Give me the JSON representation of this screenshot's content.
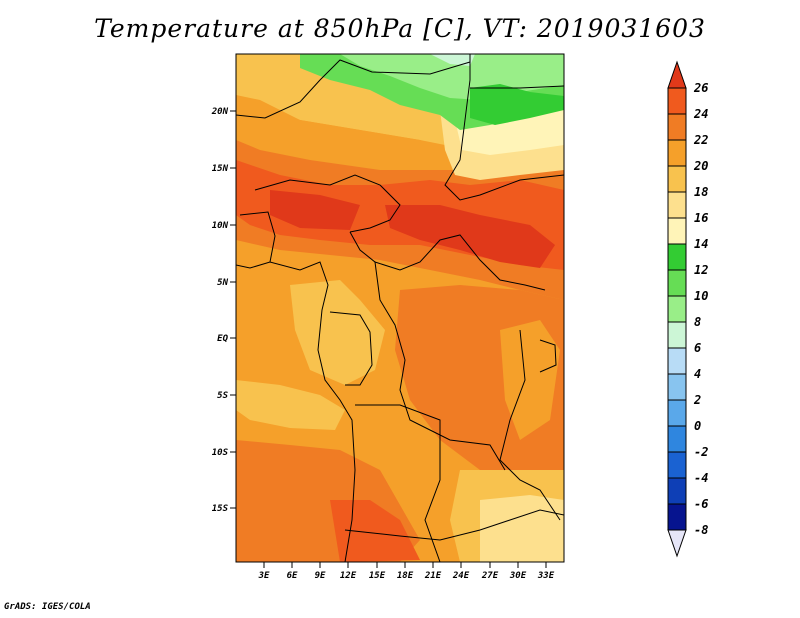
{
  "title": "Temperature at 850hPa [C], VT: 2019031603",
  "credit": "GrADS: IGES/COLA",
  "map": {
    "lat_labels": [
      "20N",
      "15N",
      "10N",
      "5N",
      "EQ",
      "5S",
      "10S",
      "15S"
    ],
    "lon_labels": [
      "3E",
      "6E",
      "9E",
      "12E",
      "15E",
      "18E",
      "21E",
      "24E",
      "27E",
      "30E",
      "33E"
    ]
  },
  "colorbar": {
    "levels": [
      "26",
      "24",
      "22",
      "20",
      "18",
      "16",
      "14",
      "12",
      "10",
      "8",
      "6",
      "4",
      "2",
      "0",
      "-2",
      "-4",
      "-6",
      "-8"
    ],
    "colors": [
      "#e0391a",
      "#f05a1e",
      "#f07c24",
      "#f5a02a",
      "#f8c24e",
      "#fde08e",
      "#fff4b8",
      "#33cc33",
      "#66dd55",
      "#99ee88",
      "#ccf6d6",
      "#b8dcf6",
      "#88c4ef",
      "#5aa8ea",
      "#2f86df",
      "#1a62d2",
      "#0e3fb6",
      "#06148f",
      "#e6e6f8"
    ]
  }
}
